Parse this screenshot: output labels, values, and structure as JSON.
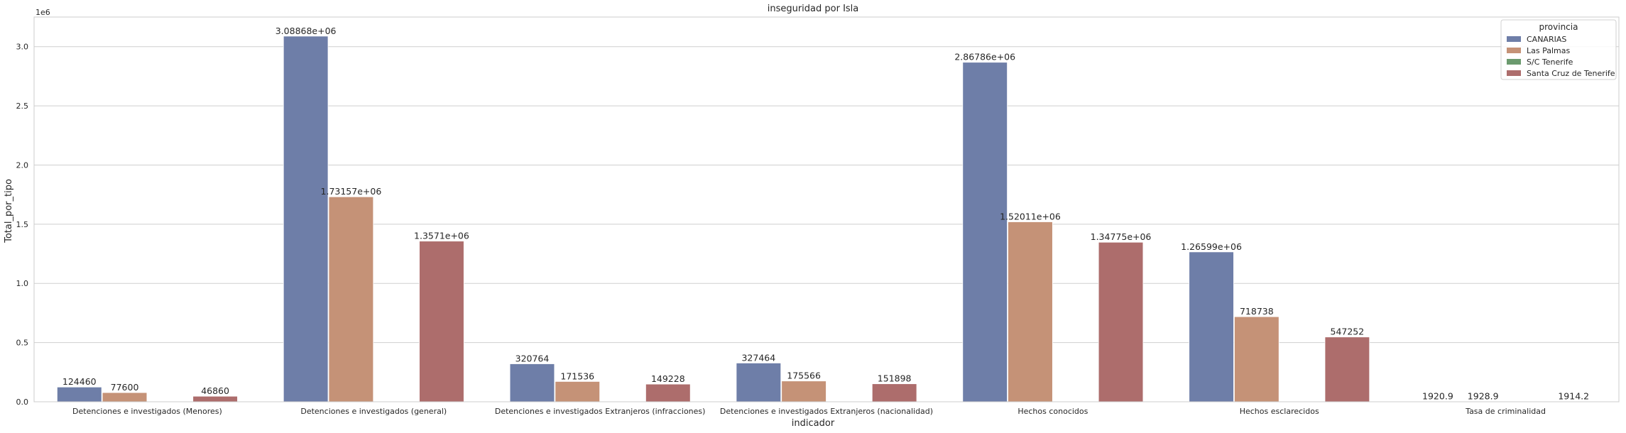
{
  "chart_data": {
    "type": "bar",
    "title": "inseguridad por Isla",
    "xlabel": "indicador",
    "ylabel": "Total_por_tipo",
    "offset_text": "1e6",
    "ylim": [
      0,
      3250000
    ],
    "yticks": [
      0,
      500000,
      1000000,
      1500000,
      2000000,
      2500000,
      3000000
    ],
    "ytick_labels": [
      "0.0",
      "0.5",
      "1.0",
      "1.5",
      "2.0",
      "2.5",
      "3.0"
    ],
    "grid": true,
    "legend_position": "top-right",
    "legend_title": "provincia",
    "categories": [
      "Detenciones e investigados (Menores)",
      "Detenciones e investigados (general)",
      "Detenciones e investigados Extranjeros (infracciones)",
      "Detenciones e investigados Extranjeros (nacionalidad)",
      "Hechos conocidos",
      "Hechos esclarecidos",
      "Tasa de criminalidad"
    ],
    "series": [
      {
        "name": "CANARIAS",
        "color": "#6e7ea8",
        "values": [
          124460,
          3088680,
          320764,
          327464,
          2867860,
          1265990,
          1920.9
        ],
        "labels": [
          "124460",
          "3.08868e+06",
          "320764",
          "327464",
          "2.86786e+06",
          "1.26599e+06",
          "1920.9"
        ]
      },
      {
        "name": "Las Palmas",
        "color": "#c59277",
        "values": [
          77600,
          1731570,
          171536,
          175566,
          1520110,
          718738,
          1928.9
        ],
        "labels": [
          "77600",
          "1.73157e+06",
          "171536",
          "175566",
          "1.52011e+06",
          "718738",
          "1928.9"
        ]
      },
      {
        "name": "S/C Tenerife",
        "color": "#6b9a6e",
        "values": [
          null,
          null,
          null,
          null,
          null,
          null,
          null
        ],
        "labels": [
          "",
          "",
          "",
          "",
          "",
          "",
          ""
        ]
      },
      {
        "name": "Santa Cruz de Tenerife",
        "color": "#ad6d6c",
        "values": [
          46860,
          1357100,
          149228,
          151898,
          1347750,
          547252,
          1914.2
        ],
        "labels": [
          "46860",
          "1.3571e+06",
          "149228",
          "151898",
          "1.34775e+06",
          "547252",
          "1914.2"
        ]
      }
    ]
  }
}
